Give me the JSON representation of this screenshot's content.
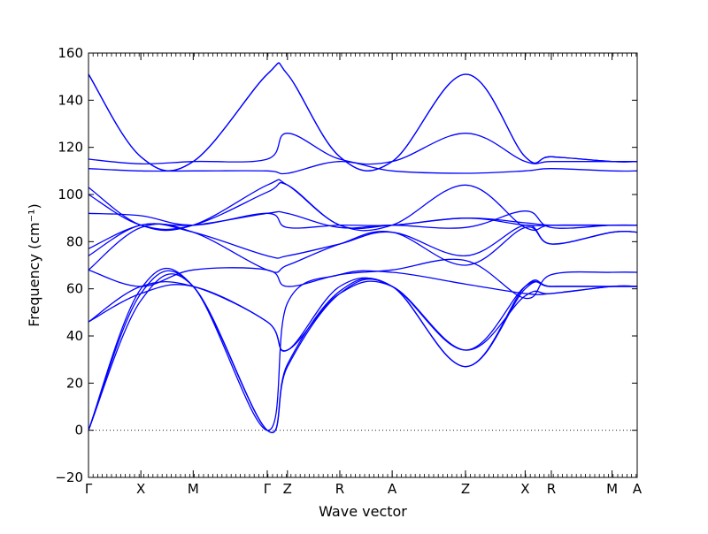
{
  "chart_data": {
    "type": "line",
    "title": "",
    "xlabel": "Wave vector",
    "ylabel": "Frequency (cm⁻¹)",
    "ylim": [
      -20,
      160
    ],
    "yticks": [
      -20,
      0,
      20,
      40,
      60,
      80,
      100,
      120,
      140,
      160
    ],
    "ytick_labels": [
      "−20",
      "0",
      "20",
      "40",
      "60",
      "80",
      "100",
      "120",
      "140",
      "160"
    ],
    "high_symmetry_points": [
      {
        "label": "Γ",
        "x": 0.0
      },
      {
        "label": "X",
        "x": 0.5
      },
      {
        "label": "M",
        "x": 1.0
      },
      {
        "label": "Γ",
        "x": 1.707
      },
      {
        "label": "Z",
        "x": 1.9
      },
      {
        "label": "R",
        "x": 2.4
      },
      {
        "label": "A",
        "x": 2.9
      },
      {
        "label": "Z",
        "x": 3.6
      },
      {
        "label": "X",
        "x": 4.17
      },
      {
        "label": "R",
        "x": 4.42
      },
      {
        "label": "M",
        "x": 5.0
      },
      {
        "label": "A",
        "x": 5.24
      }
    ],
    "zero_line": true,
    "grid": false,
    "legend": "none",
    "color": "#0000ff",
    "series": [
      {
        "x": [
          0,
          0.5,
          1.0,
          1.707,
          1.9,
          2.4,
          2.9,
          3.6,
          4.17,
          4.42,
          5.0,
          5.24
        ],
        "values": [
          0,
          55,
          61,
          0,
          27,
          58,
          61,
          27,
          60,
          61,
          61,
          61
        ]
      },
      {
        "x": [
          0,
          0.5,
          1.0,
          1.707,
          1.9,
          2.4,
          2.9,
          3.6,
          4.17,
          4.42,
          5.0,
          5.24
        ],
        "values": [
          0,
          58,
          61,
          0,
          28,
          59,
          61,
          27,
          61,
          61,
          61,
          61
        ]
      },
      {
        "x": [
          0,
          0.5,
          1.0,
          1.707,
          1.9,
          2.4,
          2.9,
          3.6,
          4.17,
          4.42,
          5.0,
          5.24
        ],
        "values": [
          0,
          60,
          61,
          0,
          54,
          66,
          67,
          62,
          58,
          58,
          61,
          61
        ]
      },
      {
        "x": [
          0,
          0.5,
          1.0,
          1.707,
          1.9,
          2.4,
          2.9,
          3.6,
          4.17,
          4.42,
          5.0,
          5.24
        ],
        "values": [
          46,
          58,
          61,
          46,
          34,
          58,
          61,
          34,
          57,
          58,
          61,
          61
        ]
      },
      {
        "x": [
          0,
          0.5,
          1.0,
          1.707,
          1.9,
          2.4,
          2.9,
          3.6,
          4.17,
          4.42,
          5.0,
          5.24
        ],
        "values": [
          46,
          61,
          61,
          46,
          34,
          61,
          61,
          34,
          61,
          61,
          61,
          61
        ]
      },
      {
        "x": [
          0,
          0.5,
          1.0,
          1.707,
          1.9,
          2.4,
          2.9,
          3.6,
          4.17,
          4.42,
          5.0,
          5.24
        ],
        "values": [
          68,
          61,
          68,
          68,
          61,
          66,
          68,
          72,
          56,
          66,
          67,
          67
        ]
      },
      {
        "x": [
          0,
          0.5,
          1.0,
          1.707,
          1.9,
          2.4,
          2.9,
          3.6,
          4.17,
          4.42,
          5.0,
          5.24
        ],
        "values": [
          68,
          86,
          84,
          68,
          70,
          79,
          84,
          70,
          86,
          79,
          84,
          84
        ]
      },
      {
        "x": [
          0,
          0.5,
          1.0,
          1.707,
          1.9,
          2.4,
          2.9,
          3.6,
          4.17,
          4.42,
          5.0,
          5.24
        ],
        "values": [
          74,
          87,
          84,
          74,
          74,
          79,
          84,
          74,
          87,
          79,
          84,
          84
        ]
      },
      {
        "x": [
          0,
          0.5,
          1.0,
          1.707,
          1.9,
          2.4,
          2.9,
          3.6,
          4.17,
          4.42,
          5.0,
          5.24
        ],
        "values": [
          77,
          87,
          87,
          92,
          92,
          86,
          87,
          86,
          93,
          86,
          87,
          87
        ]
      },
      {
        "x": [
          0,
          0.5,
          1.0,
          1.707,
          1.9,
          2.4,
          2.9,
          3.6,
          4.17,
          4.42,
          5.0,
          5.24
        ],
        "values": [
          92,
          91,
          87,
          92,
          86,
          87,
          87,
          90,
          88,
          87,
          87,
          87
        ]
      },
      {
        "x": [
          0,
          0.5,
          1.0,
          1.707,
          1.9,
          2.4,
          2.9,
          3.6,
          4.17,
          4.42,
          5.0,
          5.24
        ],
        "values": [
          100,
          87,
          87,
          101,
          104,
          87,
          87,
          90,
          87,
          87,
          87,
          87
        ]
      },
      {
        "x": [
          0,
          0.5,
          1.0,
          1.707,
          1.9,
          2.4,
          2.9,
          3.6,
          4.17,
          4.42,
          5.0,
          5.24
        ],
        "values": [
          103,
          87,
          87,
          104,
          104,
          87,
          87,
          104,
          86,
          87,
          87,
          87
        ]
      },
      {
        "x": [
          0,
          0.5,
          1.0,
          1.707,
          1.9,
          2.4,
          2.9,
          3.6,
          4.17,
          4.42,
          5.0,
          5.24
        ],
        "values": [
          111,
          110,
          110,
          110,
          109,
          114,
          110,
          109,
          110,
          111,
          110,
          110
        ]
      },
      {
        "x": [
          0,
          0.5,
          1.0,
          1.707,
          1.9,
          2.4,
          2.9,
          3.6,
          4.17,
          4.42,
          5.0,
          5.24
        ],
        "values": [
          115,
          113,
          114,
          115,
          126,
          115,
          114,
          126,
          114,
          114,
          114,
          114
        ]
      },
      {
        "x": [
          0,
          0.5,
          1.0,
          1.707,
          1.9,
          2.4,
          2.9,
          3.6,
          4.17,
          4.42,
          5.0,
          5.24
        ],
        "values": [
          151,
          116,
          114,
          151,
          151,
          116,
          114,
          151,
          116,
          116,
          114,
          114
        ]
      },
      {
        "x": [
          0,
          0.5,
          1.0,
          1.707,
          1.9,
          2.4,
          2.9,
          3.6,
          4.17,
          4.42,
          5.0,
          5.24
        ],
        "values": [
          151,
          116,
          114,
          151,
          151,
          116,
          114,
          151,
          116,
          116,
          114,
          114
        ]
      }
    ]
  }
}
